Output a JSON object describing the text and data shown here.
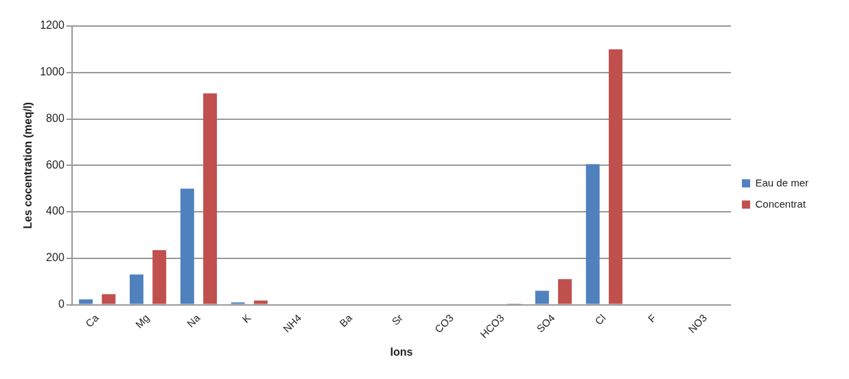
{
  "chart_data": {
    "type": "bar",
    "xlabel": "Ions",
    "ylabel": "Les cocentration (meq/l)",
    "categories": [
      "Ca",
      "Mg",
      "Na",
      "K",
      "NH4",
      "Ba",
      "Sr",
      "CO3",
      "HCO3",
      "SO4",
      "Cl",
      "F",
      "NO3"
    ],
    "series": [
      {
        "name": "Eau de mer",
        "color": "#4f81bd",
        "values": [
          23,
          130,
          500,
          10,
          0,
          0,
          0,
          0,
          3,
          60,
          605,
          0,
          0
        ]
      },
      {
        "name": "Concentrat",
        "color": "#c0504d",
        "values": [
          45,
          235,
          910,
          18,
          0,
          0,
          0,
          0,
          5,
          110,
          1100,
          0,
          0
        ]
      }
    ],
    "ylim": [
      0,
      1200
    ],
    "yticks": [
      0,
      200,
      400,
      600,
      800,
      1000,
      1200
    ],
    "grid": "y",
    "legend": "right"
  }
}
